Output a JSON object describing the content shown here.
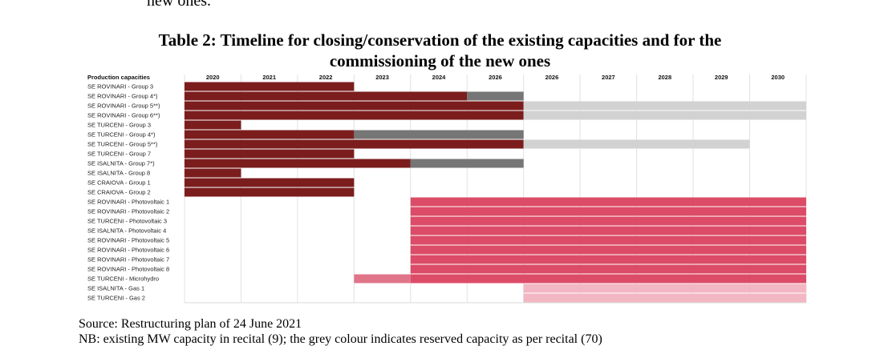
{
  "fragment_text": "new ones.",
  "title_line1": "Table 2: Timeline for closing/conservation of the existing capacities and for the",
  "title_line2": "commissioning of the new ones",
  "table": {
    "header_label": "Production capacities",
    "years": [
      "2020",
      "2021",
      "2022",
      "2023",
      "2024",
      "2026",
      "2026",
      "2027",
      "2028",
      "2029",
      "2030"
    ],
    "colors": {
      "existing": "#7b1d1d",
      "reserved_dark": "#767676",
      "reserved_light": "#d2d2d2",
      "new_capacity": "#dc4b67",
      "microhydro": "#e0758a",
      "gas": "#f2b7c3"
    },
    "rows": [
      {
        "label": "SE ROVINARI - Group 3",
        "bars": [
          {
            "start": 0,
            "end": 3,
            "kind": "existing"
          }
        ]
      },
      {
        "label": "SE ROVINARI - Group 4*)",
        "bars": [
          {
            "start": 0,
            "end": 5,
            "kind": "existing"
          },
          {
            "start": 5,
            "end": 6,
            "kind": "reserved_dark"
          }
        ]
      },
      {
        "label": "SE ROVINARI - Group 5**)",
        "bars": [
          {
            "start": 0,
            "end": 6,
            "kind": "existing"
          },
          {
            "start": 6,
            "end": 11,
            "kind": "reserved_light"
          }
        ]
      },
      {
        "label": "SE ROVINARI - Group 6**)",
        "bars": [
          {
            "start": 0,
            "end": 6,
            "kind": "existing"
          },
          {
            "start": 6,
            "end": 11,
            "kind": "reserved_light"
          }
        ]
      },
      {
        "label": "SE TURCENI - Group 3",
        "bars": [
          {
            "start": 0,
            "end": 1,
            "kind": "existing"
          }
        ]
      },
      {
        "label": "SE TURCENI - Group 4*)",
        "bars": [
          {
            "start": 0,
            "end": 3,
            "kind": "existing"
          },
          {
            "start": 3,
            "end": 6,
            "kind": "reserved_dark"
          }
        ]
      },
      {
        "label": "SE TURCENI - Group 5**)",
        "bars": [
          {
            "start": 0,
            "end": 6,
            "kind": "existing"
          },
          {
            "start": 6,
            "end": 10,
            "kind": "reserved_light"
          }
        ]
      },
      {
        "label": "SE TURCENI - Group 7",
        "bars": [
          {
            "start": 0,
            "end": 3,
            "kind": "existing"
          }
        ]
      },
      {
        "label": "SE ISALNITA - Group 7*)",
        "bars": [
          {
            "start": 0,
            "end": 4,
            "kind": "existing"
          },
          {
            "start": 4,
            "end": 6,
            "kind": "reserved_dark"
          }
        ]
      },
      {
        "label": "SE ISALNITA - Group 8",
        "bars": [
          {
            "start": 0,
            "end": 1,
            "kind": "existing"
          }
        ]
      },
      {
        "label": "SE CRAIOVA - Group 1",
        "bars": [
          {
            "start": 0,
            "end": 3,
            "kind": "existing"
          }
        ]
      },
      {
        "label": "SE CRAIOVA - Group 2",
        "bars": [
          {
            "start": 0,
            "end": 3,
            "kind": "existing"
          }
        ]
      },
      {
        "label": "SE ROVINARI - Photovoltaic 1",
        "bars": [
          {
            "start": 4,
            "end": 11,
            "kind": "new_capacity"
          }
        ]
      },
      {
        "label": "SE ROVINARI - Photovoltaic 2",
        "bars": [
          {
            "start": 4,
            "end": 11,
            "kind": "new_capacity"
          }
        ]
      },
      {
        "label": "SE TURCENI -  Photovoltaic 3",
        "bars": [
          {
            "start": 4,
            "end": 11,
            "kind": "new_capacity"
          }
        ]
      },
      {
        "label": "SE ISALNITA -  Photovoltaic 4",
        "bars": [
          {
            "start": 4,
            "end": 11,
            "kind": "new_capacity"
          }
        ]
      },
      {
        "label": "SE ROVINARI - Photovoltaic 5",
        "bars": [
          {
            "start": 4,
            "end": 11,
            "kind": "new_capacity"
          }
        ]
      },
      {
        "label": "SE ROVINARI - Photovoltaic 6",
        "bars": [
          {
            "start": 4,
            "end": 11,
            "kind": "new_capacity"
          }
        ]
      },
      {
        "label": "SE ROVINARI - Photovoltaic 7",
        "bars": [
          {
            "start": 4,
            "end": 11,
            "kind": "new_capacity"
          }
        ]
      },
      {
        "label": "SE ROVINARI - Photovoltaic 8",
        "bars": [
          {
            "start": 4,
            "end": 11,
            "kind": "new_capacity"
          }
        ]
      },
      {
        "label": "SE TURCENI - Microhydro",
        "bars": [
          {
            "start": 3,
            "end": 4,
            "kind": "microhydro"
          },
          {
            "start": 4,
            "end": 11,
            "kind": "new_capacity"
          }
        ]
      },
      {
        "label": "SE ISALNITA - Gas 1",
        "bars": [
          {
            "start": 6,
            "end": 11,
            "kind": "gas"
          }
        ]
      },
      {
        "label": "SE TURCENI - Gas 2",
        "bars": [
          {
            "start": 6,
            "end": 11,
            "kind": "gas"
          }
        ]
      }
    ]
  },
  "source_line": "Source: Restructuring plan of 24 June 2021",
  "nb_line": "NB: existing MW capacity in recital (9); the grey colour indicates reserved capacity as per recital (70)"
}
